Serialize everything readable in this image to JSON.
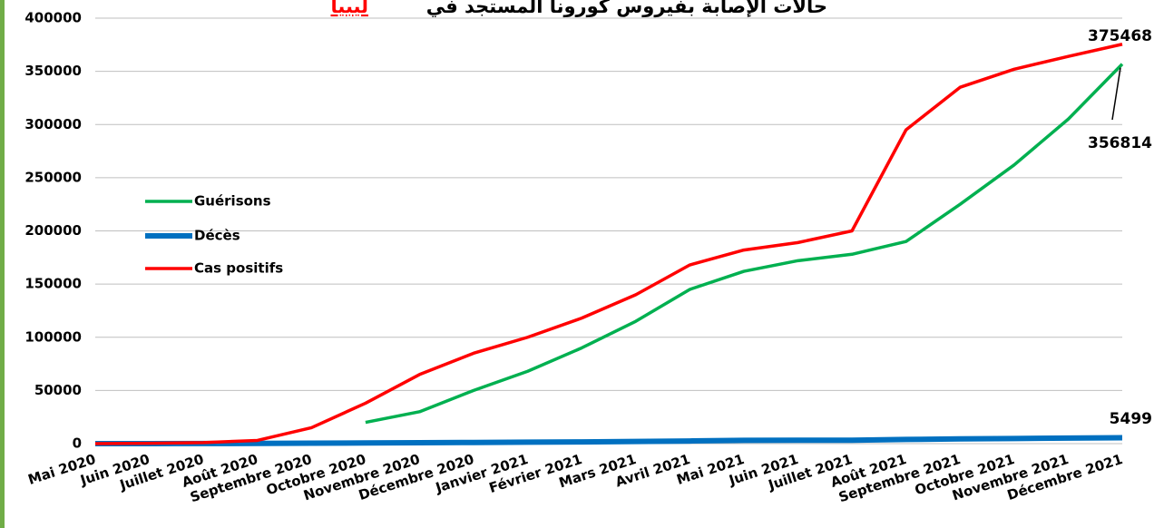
{
  "chart_data": {
    "type": "line",
    "title": "حالات الإصابة بفيروس كورونا المستجد في",
    "title_country": "ليبيا",
    "categories": [
      "Mai 2020",
      "Juin 2020",
      "Juillet 2020",
      "Août 2020",
      "Septembre 2020",
      "Octobre 2020",
      "Novembre 2020",
      "Décembre 2020",
      "Janvier 2021",
      "Février 2021",
      "Mars 2021",
      "Avril 2021",
      "Mai 2021",
      "Juin 2021",
      "Juillet 2021",
      "Août 2021",
      "Septembre 2021",
      "Octobre 2021",
      "Novembre 2021",
      "Décembre 2021"
    ],
    "series": [
      {
        "name": "Guérisons",
        "color": "#00b050",
        "values": [
          null,
          null,
          null,
          null,
          null,
          20000,
          30000,
          50000,
          68000,
          90000,
          115000,
          145000,
          162000,
          172000,
          178000,
          190000,
          225000,
          262000,
          305000,
          356814
        ]
      },
      {
        "name": "Décès",
        "color": "#0070c0",
        "values": [
          5,
          30,
          100,
          200,
          400,
          600,
          900,
          1100,
          1400,
          1600,
          2000,
          2500,
          3100,
          3200,
          3200,
          3900,
          4500,
          4800,
          5200,
          5499
        ]
      },
      {
        "name": "Cas positifs",
        "color": "#ff0000",
        "values": [
          0,
          300,
          1000,
          3000,
          15000,
          38000,
          65000,
          85000,
          100000,
          118000,
          140000,
          168000,
          182000,
          189000,
          200000,
          295000,
          335000,
          352000,
          364000,
          375468
        ]
      }
    ],
    "ylim": [
      0,
      400000
    ],
    "yticks": [
      0,
      50000,
      100000,
      150000,
      200000,
      250000,
      300000,
      350000,
      400000
    ],
    "grid": true,
    "legend": "left"
  }
}
